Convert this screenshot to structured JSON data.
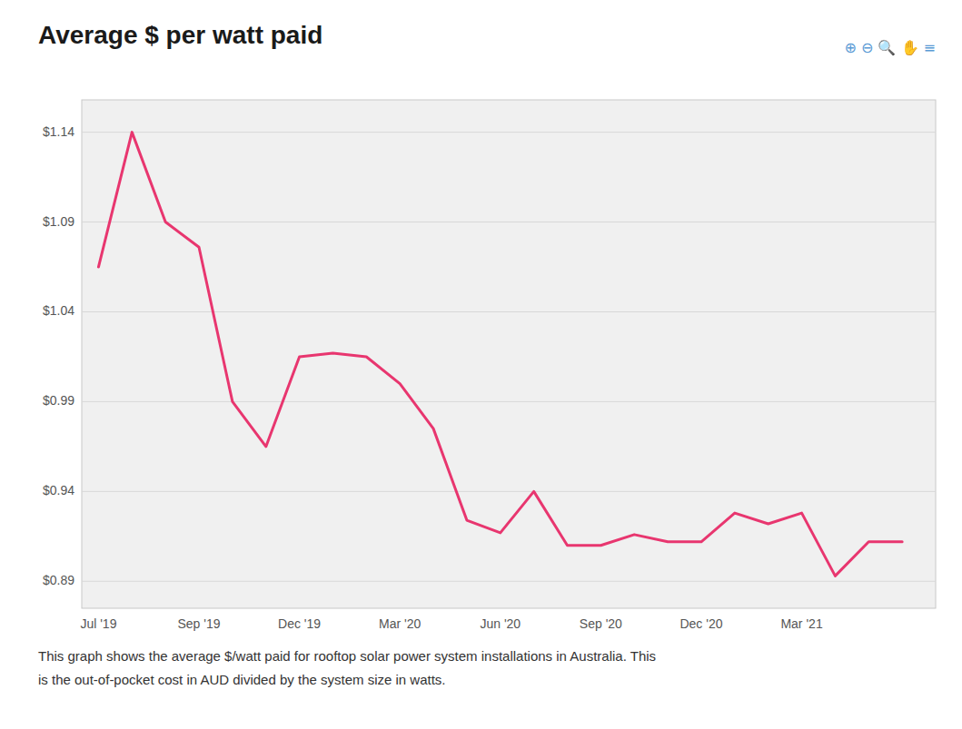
{
  "chart_data": {
    "type": "line",
    "title": "Average $ per watt paid",
    "caption": [
      "This graph shows the average $/watt paid for rooftop solar power system installations in Australia. This",
      "is the out-of-pocket cost in AUD divided by the system size in watts."
    ],
    "toolbar": "⊕ ⊖ 🔍 ✋️ ≡",
    "x": [
      0,
      1,
      2,
      3,
      4,
      5,
      6,
      7,
      8,
      9,
      10,
      11,
      12,
      13,
      14,
      15,
      16,
      17,
      18,
      19,
      20,
      21,
      22,
      23,
      24
    ],
    "values": [
      1.065,
      1.14,
      1.09,
      1.076,
      0.99,
      0.965,
      1.015,
      1.017,
      1.015,
      1.0,
      0.975,
      0.924,
      0.917,
      0.94,
      0.91,
      0.91,
      0.916,
      0.912,
      0.912,
      0.928,
      0.922,
      0.928,
      0.893,
      0.912,
      0.912
    ],
    "color": "#e8366f",
    "xlim": [
      -0.5,
      25.0
    ],
    "xticks": [
      {
        "value": 0,
        "label": "Jul '19"
      },
      {
        "value": 3,
        "label": "Sep '19"
      },
      {
        "value": 6,
        "label": "Dec '19"
      },
      {
        "value": 9,
        "label": "Mar '20"
      },
      {
        "value": 12,
        "label": "Jun '20"
      },
      {
        "value": 15,
        "label": "Sep '20"
      },
      {
        "value": 18,
        "label": "Dec '20"
      },
      {
        "value": 21,
        "label": "Mar '21"
      }
    ],
    "ylim": [
      0.875,
      1.158
    ],
    "yticks": [
      {
        "value": 0.89,
        "label": "$0.89"
      },
      {
        "value": 0.94,
        "label": "$0.94"
      },
      {
        "value": 0.99,
        "label": "$0.99"
      },
      {
        "value": 1.04,
        "label": "$1.04"
      },
      {
        "value": 1.09,
        "label": "$1.09"
      },
      {
        "value": 1.14,
        "label": "$1.14"
      }
    ],
    "grid": true
  }
}
